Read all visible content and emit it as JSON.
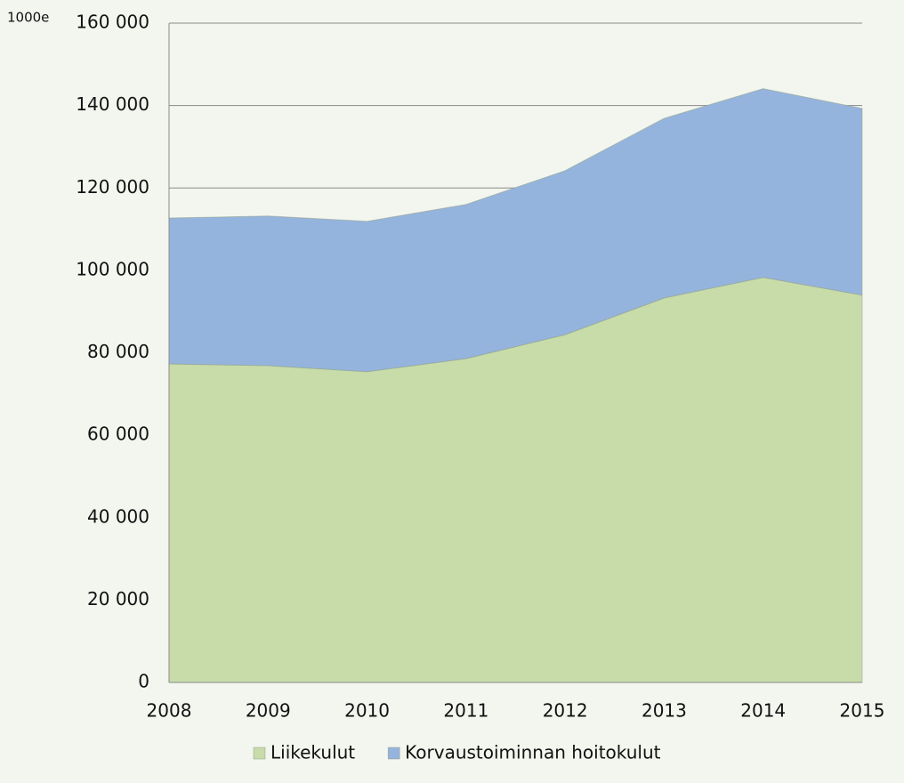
{
  "chart_data": {
    "type": "stacked_area",
    "unit_label": "1000e",
    "categories": [
      "2008",
      "2009",
      "2010",
      "2011",
      "2012",
      "2013",
      "2014",
      "2015"
    ],
    "series": [
      {
        "name": "Liikekulut",
        "color": "#c8dcaa",
        "values": [
          77300,
          76900,
          75400,
          78600,
          84400,
          93300,
          98300,
          94000
        ]
      },
      {
        "name": "Korvaustoiminnan hoitokulut",
        "color": "#95b4dd",
        "values": [
          35400,
          36300,
          36500,
          37400,
          39800,
          43600,
          45800,
          45300
        ]
      }
    ],
    "ylim": [
      0,
      160000
    ],
    "yticks": [
      0,
      {
        "value": 20000,
        "label": "20 000"
      },
      {
        "value": 40000,
        "label": "40 000"
      },
      {
        "value": 60000,
        "label": "60 000"
      },
      {
        "value": 80000,
        "label": "80 000"
      },
      {
        "value": 100000,
        "label": "100 000"
      },
      {
        "value": 120000,
        "label": "120 000"
      },
      {
        "value": 140000,
        "label": "140 000"
      },
      {
        "value": 160000,
        "label": "160 000"
      }
    ],
    "grid": true,
    "legend": "bottom"
  }
}
